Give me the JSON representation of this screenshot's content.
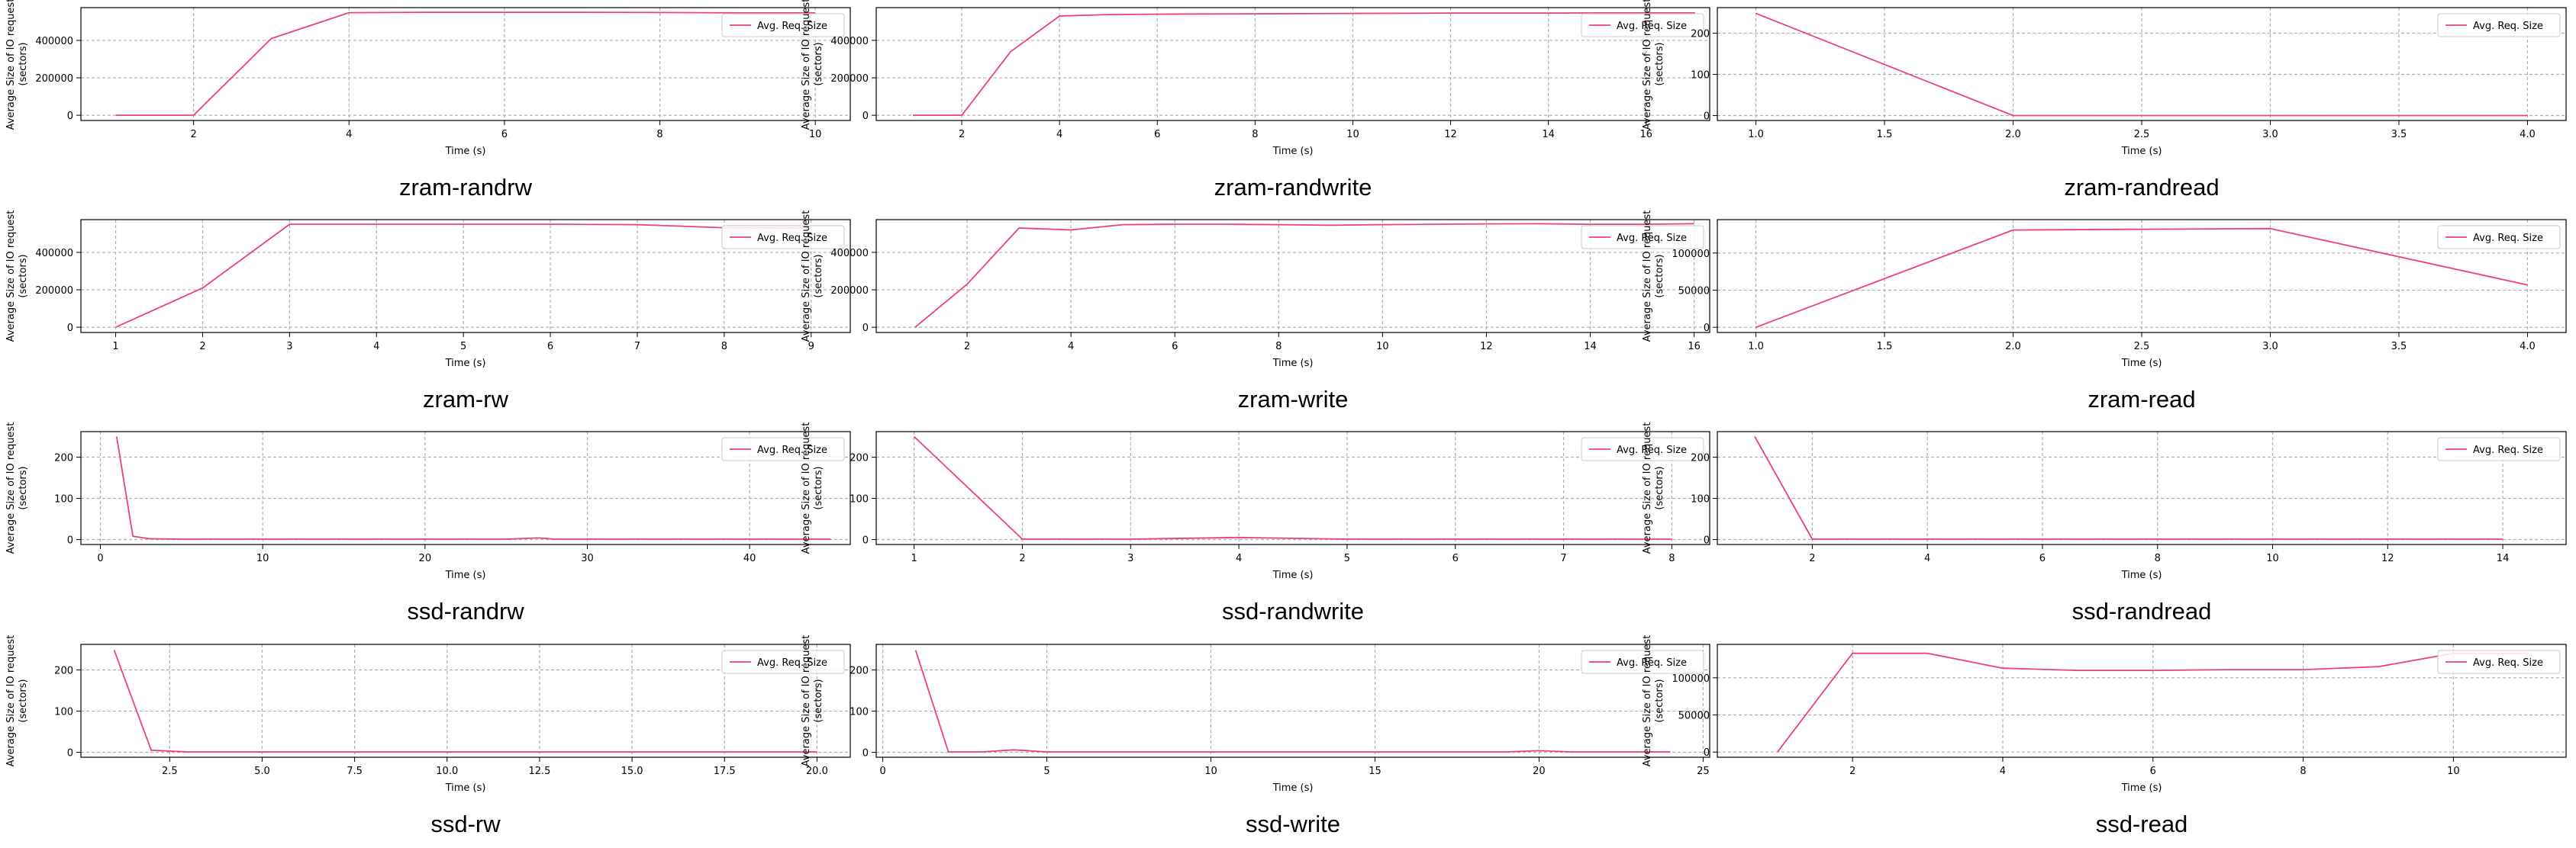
{
  "colors": {
    "series": "#ee3d8a",
    "grid": "#b0b0b0",
    "frame": "#000000",
    "legend_border": "#cccccc"
  },
  "chart_data": [
    {
      "type": "line",
      "title": "zram-randrw",
      "xlabel": "Time (s)",
      "ylabel_lines": [
        "Average Size of IO request",
        "(sectors)"
      ],
      "xlim": [
        0.55,
        10.45
      ],
      "ylim": [
        -28000,
        575000
      ],
      "xticks": [
        2,
        4,
        6,
        8,
        10
      ],
      "xtick_labels": [
        "2",
        "4",
        "6",
        "8",
        "10"
      ],
      "yticks": [
        0,
        200000,
        400000
      ],
      "ytick_labels": [
        "0",
        "200000",
        "400000"
      ],
      "legend": "top-right",
      "series": [
        {
          "name": "Avg. Req. Size",
          "x": [
            1,
            2,
            3,
            4,
            5,
            6,
            7,
            8,
            9,
            10
          ],
          "y": [
            0,
            0,
            410000,
            548000,
            550000,
            550000,
            550000,
            549000,
            547000,
            547000
          ]
        }
      ]
    },
    {
      "type": "line",
      "title": "zram-randwrite",
      "xlabel": "Time (s)",
      "ylabel_lines": [
        "Average Size of IO request",
        "(sectors)"
      ],
      "xlim": [
        0.25,
        17.3
      ],
      "ylim": [
        -28000,
        575000
      ],
      "xticks": [
        2,
        4,
        6,
        8,
        10,
        12,
        14,
        16
      ],
      "xtick_labels": [
        "2",
        "4",
        "6",
        "8",
        "10",
        "12",
        "14",
        "16"
      ],
      "yticks": [
        0,
        200000,
        400000
      ],
      "ytick_labels": [
        "0",
        "200000",
        "400000"
      ],
      "legend": "top-right",
      "series": [
        {
          "name": "Avg. Req. Size",
          "x": [
            1,
            2,
            3,
            4,
            5,
            6,
            7,
            8,
            9,
            10,
            11,
            12,
            13,
            14,
            15,
            16,
            17
          ],
          "y": [
            0,
            0,
            340000,
            530000,
            538000,
            540000,
            541000,
            542000,
            543000,
            544000,
            545000,
            546000,
            546000,
            546000,
            547000,
            547000,
            547000
          ]
        }
      ]
    },
    {
      "type": "line",
      "title": "zram-randread",
      "xlabel": "Time (s)",
      "ylabel_lines": [
        "Average Size of IO request",
        "(sectors)"
      ],
      "xlim": [
        0.85,
        4.15
      ],
      "ylim": [
        -12,
        262
      ],
      "xticks": [
        1,
        1.5,
        2,
        2.5,
        3,
        3.5,
        4
      ],
      "xtick_labels": [
        "1.0",
        "1.5",
        "2.0",
        "2.5",
        "3.0",
        "3.5",
        "4.0"
      ],
      "yticks": [
        0,
        100,
        200
      ],
      "ytick_labels": [
        "0",
        "100",
        "200"
      ],
      "legend": "top-right",
      "series": [
        {
          "name": "Avg. Req. Size",
          "x": [
            1,
            2,
            3,
            4
          ],
          "y": [
            248,
            0,
            0,
            0
          ]
        }
      ]
    },
    {
      "type": "line",
      "title": "zram-rw",
      "xlabel": "Time (s)",
      "ylabel_lines": [
        "Average Size of IO request",
        "(sectors)"
      ],
      "xlim": [
        0.6,
        9.45
      ],
      "ylim": [
        -28000,
        575000
      ],
      "xticks": [
        1,
        2,
        3,
        4,
        5,
        6,
        7,
        8,
        9
      ],
      "xtick_labels": [
        "1",
        "2",
        "3",
        "4",
        "5",
        "6",
        "7",
        "8",
        "9"
      ],
      "yticks": [
        0,
        200000,
        400000
      ],
      "ytick_labels": [
        "0",
        "200000",
        "400000"
      ],
      "legend": "top-right",
      "series": [
        {
          "name": "Avg. Req. Size",
          "x": [
            1,
            2,
            3,
            4,
            5,
            6,
            7,
            8,
            9
          ],
          "y": [
            0,
            210000,
            550000,
            550000,
            550000,
            550000,
            548000,
            532000,
            530000
          ]
        }
      ]
    },
    {
      "type": "line",
      "title": "zram-write",
      "xlabel": "Time (s)",
      "ylabel_lines": [
        "Average Size of IO request",
        "(sectors)"
      ],
      "xlim": [
        0.25,
        16.3
      ],
      "ylim": [
        -28000,
        575000
      ],
      "xticks": [
        2,
        4,
        6,
        8,
        10,
        12,
        14,
        16
      ],
      "xtick_labels": [
        "2",
        "4",
        "6",
        "8",
        "10",
        "12",
        "14",
        "16"
      ],
      "yticks": [
        0,
        200000,
        400000
      ],
      "ytick_labels": [
        "0",
        "200000",
        "400000"
      ],
      "legend": "top-right",
      "series": [
        {
          "name": "Avg. Req. Size",
          "x": [
            1,
            2,
            3,
            4,
            5,
            6,
            7,
            8,
            9,
            10,
            11,
            12,
            13,
            14,
            15,
            16
          ],
          "y": [
            0,
            230000,
            530000,
            520000,
            548000,
            550000,
            550000,
            548000,
            545000,
            548000,
            550000,
            552000,
            553000,
            550000,
            550000,
            553000
          ]
        }
      ]
    },
    {
      "type": "line",
      "title": "zram-read",
      "xlabel": "Time (s)",
      "ylabel_lines": [
        "Average Size of IO request",
        "(sectors)"
      ],
      "xlim": [
        0.85,
        4.15
      ],
      "ylim": [
        -7000,
        145000
      ],
      "xticks": [
        1,
        1.5,
        2,
        2.5,
        3,
        3.5,
        4
      ],
      "xtick_labels": [
        "1.0",
        "1.5",
        "2.0",
        "2.5",
        "3.0",
        "3.5",
        "4.0"
      ],
      "yticks": [
        0,
        50000,
        100000
      ],
      "ytick_labels": [
        "0",
        "50000",
        "100000"
      ],
      "legend": "top-right",
      "series": [
        {
          "name": "Avg. Req. Size",
          "x": [
            1,
            2,
            3,
            4
          ],
          "y": [
            0,
            131000,
            133000,
            57000
          ]
        }
      ]
    },
    {
      "type": "line",
      "title": "ssd-randrw",
      "xlabel": "Time (s)",
      "ylabel_lines": [
        "Average Size of IO request",
        "(sectors)"
      ],
      "xlim": [
        -1.2,
        46.2
      ],
      "ylim": [
        -12,
        262
      ],
      "xticks": [
        0,
        10,
        20,
        30,
        40
      ],
      "xtick_labels": [
        "0",
        "10",
        "20",
        "30",
        "40"
      ],
      "yticks": [
        0,
        100,
        200
      ],
      "ytick_labels": [
        "0",
        "100",
        "200"
      ],
      "legend": "top-right",
      "series": [
        {
          "name": "Avg. Req. Size",
          "x": [
            1,
            2,
            3,
            5,
            10,
            15,
            20,
            25,
            27,
            28,
            30,
            35,
            40,
            45
          ],
          "y": [
            250,
            8,
            2,
            1,
            1,
            1,
            1,
            1,
            4,
            1,
            1,
            1,
            1,
            1
          ]
        }
      ]
    },
    {
      "type": "line",
      "title": "ssd-randwrite",
      "xlabel": "Time (s)",
      "ylabel_lines": [
        "Average Size of IO request",
        "(sectors)"
      ],
      "xlim": [
        0.65,
        8.35
      ],
      "ylim": [
        -12,
        262
      ],
      "xticks": [
        1,
        2,
        3,
        4,
        5,
        6,
        7,
        8
      ],
      "xtick_labels": [
        "1",
        "2",
        "3",
        "4",
        "5",
        "6",
        "7",
        "8"
      ],
      "yticks": [
        0,
        100,
        200
      ],
      "ytick_labels": [
        "0",
        "100",
        "200"
      ],
      "legend": "top-right",
      "series": [
        {
          "name": "Avg. Req. Size",
          "x": [
            1,
            2,
            3,
            4,
            5,
            6,
            7,
            8
          ],
          "y": [
            250,
            1,
            1,
            5,
            1,
            1,
            1,
            1
          ]
        }
      ]
    },
    {
      "type": "line",
      "title": "ssd-randread",
      "xlabel": "Time (s)",
      "ylabel_lines": [
        "Average Size of IO request",
        "(sectors)"
      ],
      "xlim": [
        0.35,
        15.1
      ],
      "ylim": [
        -12,
        262
      ],
      "xticks": [
        2,
        4,
        6,
        8,
        10,
        12,
        14
      ],
      "xtick_labels": [
        "2",
        "4",
        "6",
        "8",
        "10",
        "12",
        "14"
      ],
      "yticks": [
        0,
        100,
        200
      ],
      "ytick_labels": [
        "0",
        "100",
        "200"
      ],
      "legend": "top-right",
      "series": [
        {
          "name": "Avg. Req. Size",
          "x": [
            1,
            2,
            3,
            4,
            5,
            6,
            7,
            8,
            9,
            10,
            11,
            12,
            13,
            14
          ],
          "y": [
            250,
            1,
            1,
            1,
            1,
            1,
            1,
            1,
            1,
            1,
            1,
            1,
            1,
            1
          ]
        }
      ]
    },
    {
      "type": "line",
      "title": "ssd-rw",
      "xlabel": "Time (s)",
      "ylabel_lines": [
        "Average Size of IO request",
        "(sectors)"
      ],
      "xlim": [
        0.1,
        20.9
      ],
      "ylim": [
        -12,
        262
      ],
      "xticks": [
        2.5,
        5,
        7.5,
        10,
        12.5,
        15,
        17.5,
        20
      ],
      "xtick_labels": [
        "2.5",
        "5.0",
        "7.5",
        "10.0",
        "12.5",
        "15.0",
        "17.5",
        "20.0"
      ],
      "yticks": [
        0,
        100,
        200
      ],
      "ytick_labels": [
        "0",
        "100",
        "200"
      ],
      "legend": "top-right",
      "series": [
        {
          "name": "Avg. Req. Size",
          "x": [
            1,
            2,
            3,
            5,
            10,
            15,
            20
          ],
          "y": [
            248,
            5,
            1,
            1,
            1,
            1,
            1
          ]
        }
      ]
    },
    {
      "type": "line",
      "title": "ssd-write",
      "xlabel": "Time (s)",
      "ylabel_lines": [
        "Average Size of IO request",
        "(sectors)"
      ],
      "xlim": [
        -0.2,
        25.2
      ],
      "ylim": [
        -12,
        262
      ],
      "xticks": [
        0,
        5,
        10,
        15,
        20,
        25
      ],
      "xtick_labels": [
        "0",
        "5",
        "10",
        "15",
        "20",
        "25"
      ],
      "yticks": [
        0,
        100,
        200
      ],
      "ytick_labels": [
        "0",
        "100",
        "200"
      ],
      "legend": "top-right",
      "series": [
        {
          "name": "Avg. Req. Size",
          "x": [
            1,
            2,
            3,
            4,
            5,
            10,
            15,
            19,
            20,
            21,
            24
          ],
          "y": [
            248,
            1,
            1,
            6,
            1,
            1,
            1,
            1,
            4,
            1,
            1
          ]
        }
      ]
    },
    {
      "type": "line",
      "title": "ssd-read",
      "xlabel": "Time (s)",
      "ylabel_lines": [
        "Average Size of IO request",
        "(sectors)"
      ],
      "xlim": [
        0.2,
        11.5
      ],
      "ylim": [
        -7000,
        145000
      ],
      "xticks": [
        2,
        4,
        6,
        8,
        10
      ],
      "xtick_labels": [
        "2",
        "4",
        "6",
        "8",
        "10"
      ],
      "yticks": [
        0,
        50000,
        100000
      ],
      "ytick_labels": [
        "0",
        "50000",
        "100000"
      ],
      "legend": "top-right",
      "series": [
        {
          "name": "Avg. Req. Size",
          "x": [
            1,
            2,
            3,
            4,
            5,
            6,
            7,
            8,
            9,
            10,
            11
          ],
          "y": [
            0,
            133000,
            133000,
            113000,
            110000,
            110000,
            111000,
            111000,
            115000,
            133000,
            133000
          ]
        }
      ]
    }
  ]
}
